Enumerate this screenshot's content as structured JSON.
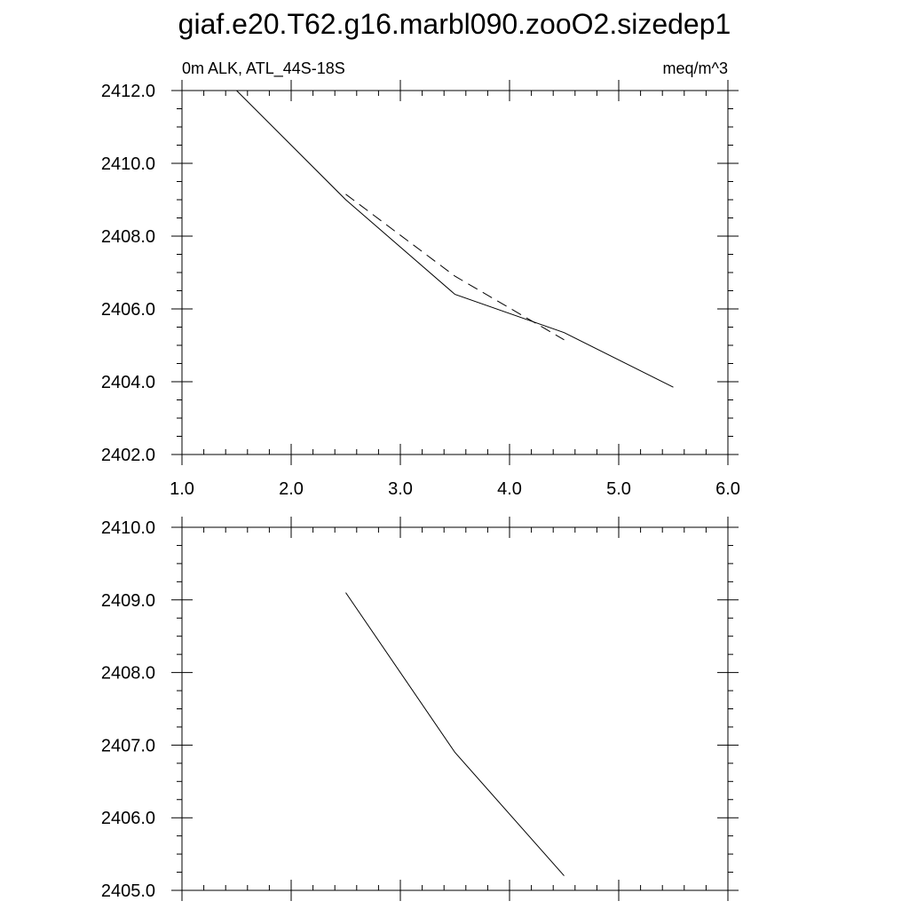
{
  "title": "giaf.e20.T62.g16.marbl090.zooO2.sizedep1",
  "chart_data": [
    {
      "type": "line",
      "left_label": "0m ALK, ATL_44S-18S",
      "right_label": "meq/m^3",
      "xlim": [
        1.0,
        6.0
      ],
      "ylim": [
        2402.0,
        2412.0
      ],
      "x_ticks": [
        "1.0",
        "2.0",
        "3.0",
        "4.0",
        "5.0",
        "6.0"
      ],
      "y_ticks": [
        "2402.0",
        "2404.0",
        "2406.0",
        "2408.0",
        "2410.0",
        "2412.0"
      ],
      "series": [
        {
          "style": "solid",
          "x": [
            1.5,
            2.5,
            3.5,
            4.5,
            5.5
          ],
          "y": [
            2412.0,
            2409.0,
            2406.4,
            2405.35,
            2403.85
          ]
        },
        {
          "style": "dashed",
          "x": [
            2.5,
            3.5,
            4.5
          ],
          "y": [
            2409.15,
            2406.9,
            2405.15
          ]
        }
      ]
    },
    {
      "type": "line",
      "xlim": [
        1.0,
        6.0
      ],
      "ylim": [
        2405.0,
        2410.0
      ],
      "y_ticks": [
        "2405.0",
        "2406.0",
        "2407.0",
        "2408.0",
        "2409.0",
        "2410.0"
      ],
      "series": [
        {
          "style": "solid",
          "x": [
            2.5,
            3.5,
            4.5
          ],
          "y": [
            2409.1,
            2406.9,
            2405.2
          ]
        }
      ]
    }
  ]
}
